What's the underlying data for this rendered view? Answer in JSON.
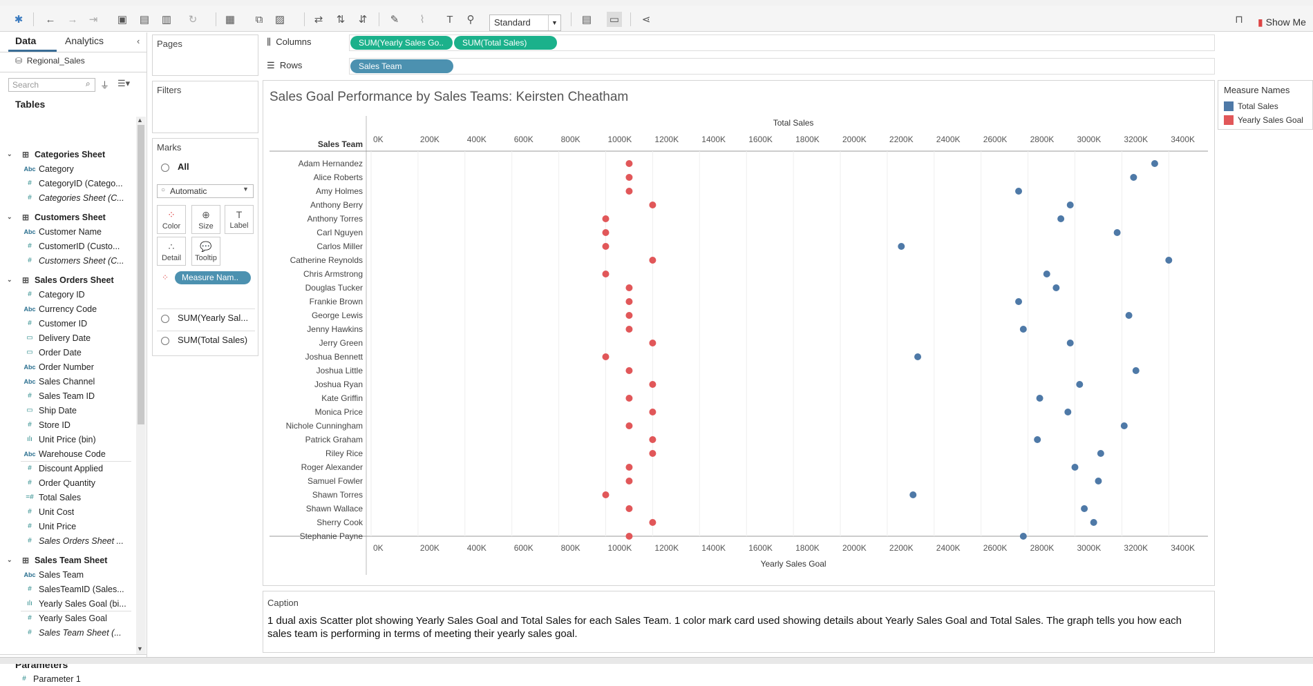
{
  "toolbar": {
    "view_mode": "Standard",
    "show_me_label": "Show Me"
  },
  "data_pane": {
    "tab_data": "Data",
    "tab_analytics": "Analytics",
    "datasource": "Regional_Sales",
    "search_placeholder": "Search",
    "tables_heading": "Tables",
    "parameters_heading": "Parameters",
    "tables": [
      {
        "name": "Categories Sheet",
        "fields": [
          {
            "type": "Abc",
            "name": "Category",
            "italic": false
          },
          {
            "type": "#",
            "name": "CategoryID (Catego...",
            "italic": false
          },
          {
            "type": "#",
            "name": "Categories Sheet (C...",
            "italic": true
          }
        ]
      },
      {
        "name": "Customers Sheet",
        "fields": [
          {
            "type": "Abc",
            "name": "Customer Name",
            "italic": false
          },
          {
            "type": "#",
            "name": "CustomerID (Custo...",
            "italic": false
          },
          {
            "type": "#",
            "name": "Customers Sheet (C...",
            "italic": true
          }
        ]
      },
      {
        "name": "Sales Orders Sheet",
        "fields": [
          {
            "type": "#",
            "name": "Category ID",
            "italic": false
          },
          {
            "type": "Abc",
            "name": "Currency Code",
            "italic": false
          },
          {
            "type": "#",
            "name": "Customer ID",
            "italic": false
          },
          {
            "type": "date",
            "name": "Delivery Date",
            "italic": false
          },
          {
            "type": "date",
            "name": "Order Date",
            "italic": false
          },
          {
            "type": "Abc",
            "name": "Order Number",
            "italic": false
          },
          {
            "type": "Abc",
            "name": "Sales Channel",
            "italic": false
          },
          {
            "type": "#",
            "name": "Sales Team ID",
            "italic": false
          },
          {
            "type": "date",
            "name": "Ship Date",
            "italic": false
          },
          {
            "type": "#",
            "name": "Store ID",
            "italic": false
          },
          {
            "type": "bin",
            "name": "Unit Price (bin)",
            "italic": false
          },
          {
            "type": "Abc",
            "name": "Warehouse Code",
            "italic": false
          },
          {
            "type": "#",
            "name": "Discount Applied",
            "italic": false,
            "sep_before": true
          },
          {
            "type": "#",
            "name": "Order Quantity",
            "italic": false
          },
          {
            "type": "#calc",
            "name": "Total Sales",
            "italic": false
          },
          {
            "type": "#",
            "name": "Unit Cost",
            "italic": false
          },
          {
            "type": "#",
            "name": "Unit Price",
            "italic": false
          },
          {
            "type": "#",
            "name": "Sales Orders Sheet ...",
            "italic": true
          }
        ]
      },
      {
        "name": "Sales Team Sheet",
        "fields": [
          {
            "type": "Abc",
            "name": "Sales Team",
            "italic": false
          },
          {
            "type": "#",
            "name": "SalesTeamID (Sales...",
            "italic": false
          },
          {
            "type": "bin",
            "name": "Yearly Sales Goal (bi...",
            "italic": false
          },
          {
            "type": "#",
            "name": "Yearly Sales Goal",
            "italic": false,
            "sep_before": true
          },
          {
            "type": "#",
            "name": "Sales Team Sheet (...",
            "italic": true
          }
        ]
      }
    ],
    "parameters": [
      {
        "type": "#",
        "name": "Parameter 1"
      }
    ]
  },
  "cards": {
    "pages": "Pages",
    "filters": "Filters",
    "marks": "Marks",
    "marks_all": "All",
    "mark_type": "Automatic",
    "mark_buttons": [
      "Color",
      "Size",
      "Label",
      "Detail",
      "Tooltip"
    ],
    "color_pill": "Measure Nam..",
    "sub_cards": [
      "SUM(Yearly Sal...",
      "SUM(Total Sales)"
    ]
  },
  "shelves": {
    "columns_label": "Columns",
    "rows_label": "Rows",
    "columns_pills": [
      "SUM(Yearly Sales Go..",
      "SUM(Total Sales)"
    ],
    "rows_pills": [
      "Sales Team"
    ]
  },
  "worksheet": {
    "title": "Sales Goal Performance by Sales Teams: Keirsten Cheatham"
  },
  "legend": {
    "title": "Measure Names",
    "items": [
      {
        "label": "Total Sales",
        "color": "#4e79a7"
      },
      {
        "label": "Yearly Sales Goal",
        "color": "#e15759"
      }
    ]
  },
  "caption": {
    "title": "Caption",
    "text": "1 dual axis Scatter plot showing Yearly Sales Goal and Total Sales for each Sales Team.  1 color mark card used showing details about Yearly Sales Goal and Total Sales. The graph tells you how each sales team is performing in terms of meeting their yearly sales goal."
  },
  "chart_data": {
    "type": "scatter",
    "row_header": "Sales Team",
    "top_axis_title": "Total Sales",
    "bottom_axis_title": "Yearly Sales Goal",
    "ticks": [
      "0K",
      "200K",
      "400K",
      "600K",
      "800K",
      "1000K",
      "1200K",
      "1400K",
      "1600K",
      "1800K",
      "2000K",
      "2200K",
      "2400K",
      "2600K",
      "2800K",
      "3000K",
      "3200K",
      "3400K"
    ],
    "xlim": [
      0,
      3600000
    ],
    "categories": [
      "Adam Hernandez",
      "Alice Roberts",
      "Amy Holmes",
      "Anthony Berry",
      "Anthony Torres",
      "Carl Nguyen",
      "Carlos Miller",
      "Catherine Reynolds",
      "Chris Armstrong",
      "Douglas Tucker",
      "Frankie Brown",
      "George Lewis",
      "Jenny Hawkins",
      "Jerry Green",
      "Joshua Bennett",
      "Joshua Little",
      "Joshua Ryan",
      "Kate Griffin",
      "Monica Price",
      "Nichole Cunningham",
      "Patrick Graham",
      "Riley Rice",
      "Roger Alexander",
      "Samuel Fowler",
      "Shawn Torres",
      "Shawn Wallace",
      "Sherry Cook",
      "Stephanie Payne"
    ],
    "series": [
      {
        "name": "Total Sales",
        "color": "#4e79a7",
        "values": [
          3340000,
          3250000,
          2760000,
          2980000,
          2940000,
          3180000,
          2260000,
          3400000,
          2880000,
          2920000,
          2760000,
          3230000,
          2780000,
          2980000,
          2330000,
          3260000,
          3020000,
          2850000,
          2970000,
          3210000,
          2840000,
          3110000,
          3000000,
          3100000,
          2310000,
          3040000,
          3080000,
          2780000
        ]
      },
      {
        "name": "Yearly Sales Goal",
        "color": "#e15759",
        "values": [
          1100000,
          1100000,
          1100000,
          1200000,
          1000000,
          1000000,
          1000000,
          1200000,
          1000000,
          1100000,
          1100000,
          1100000,
          1100000,
          1200000,
          1000000,
          1100000,
          1200000,
          1100000,
          1200000,
          1100000,
          1200000,
          1200000,
          1100000,
          1100000,
          1000000,
          1100000,
          1200000,
          1100000
        ]
      }
    ]
  }
}
